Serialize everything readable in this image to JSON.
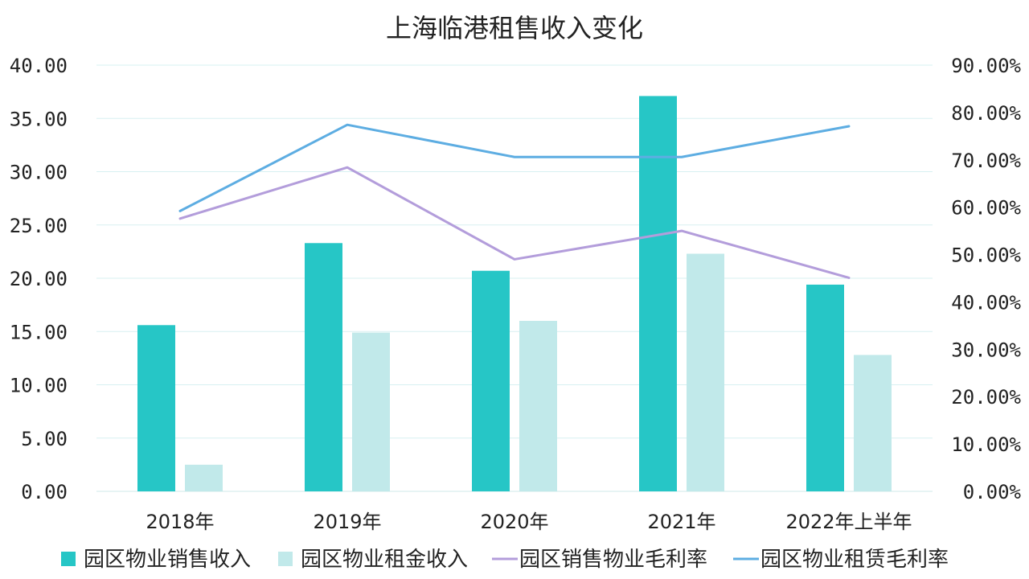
{
  "chart_data": {
    "type": "bar",
    "title": "上海临港租售收入变化",
    "categories": [
      "2018年",
      "2019年",
      "2020年",
      "2021年",
      "2022年上半年"
    ],
    "y_left": {
      "ylim": [
        0,
        40
      ],
      "ticks": [
        "0.00",
        "5.00",
        "10.00",
        "15.00",
        "20.00",
        "25.00",
        "30.00",
        "35.00",
        "40.00"
      ]
    },
    "y_right": {
      "ylim": [
        0,
        90
      ],
      "ticks": [
        "0.00%",
        "10.00%",
        "20.00%",
        "30.00%",
        "40.00%",
        "50.00%",
        "60.00%",
        "70.00%",
        "80.00%",
        "90.00%"
      ]
    },
    "grid": true,
    "legend_position": "bottom",
    "series": [
      {
        "name": "园区物业销售收入",
        "type": "bar",
        "axis": "left",
        "color": "#26C6C6",
        "values": [
          15.6,
          23.3,
          20.7,
          37.1,
          19.4
        ]
      },
      {
        "name": "园区物业租金收入",
        "type": "bar",
        "axis": "left",
        "color": "#C1E9EA",
        "values": [
          2.5,
          14.9,
          16.0,
          22.3,
          12.8
        ]
      },
      {
        "name": "园区销售物业毛利率",
        "type": "line",
        "axis": "right",
        "color": "#B39DDB",
        "values": [
          57.6,
          68.4,
          49.0,
          55.0,
          45.1
        ]
      },
      {
        "name": "园区物业租赁毛利率",
        "type": "line",
        "axis": "right",
        "color": "#5DADE2",
        "values": [
          59.2,
          77.4,
          70.6,
          70.6,
          77.1
        ]
      }
    ]
  }
}
